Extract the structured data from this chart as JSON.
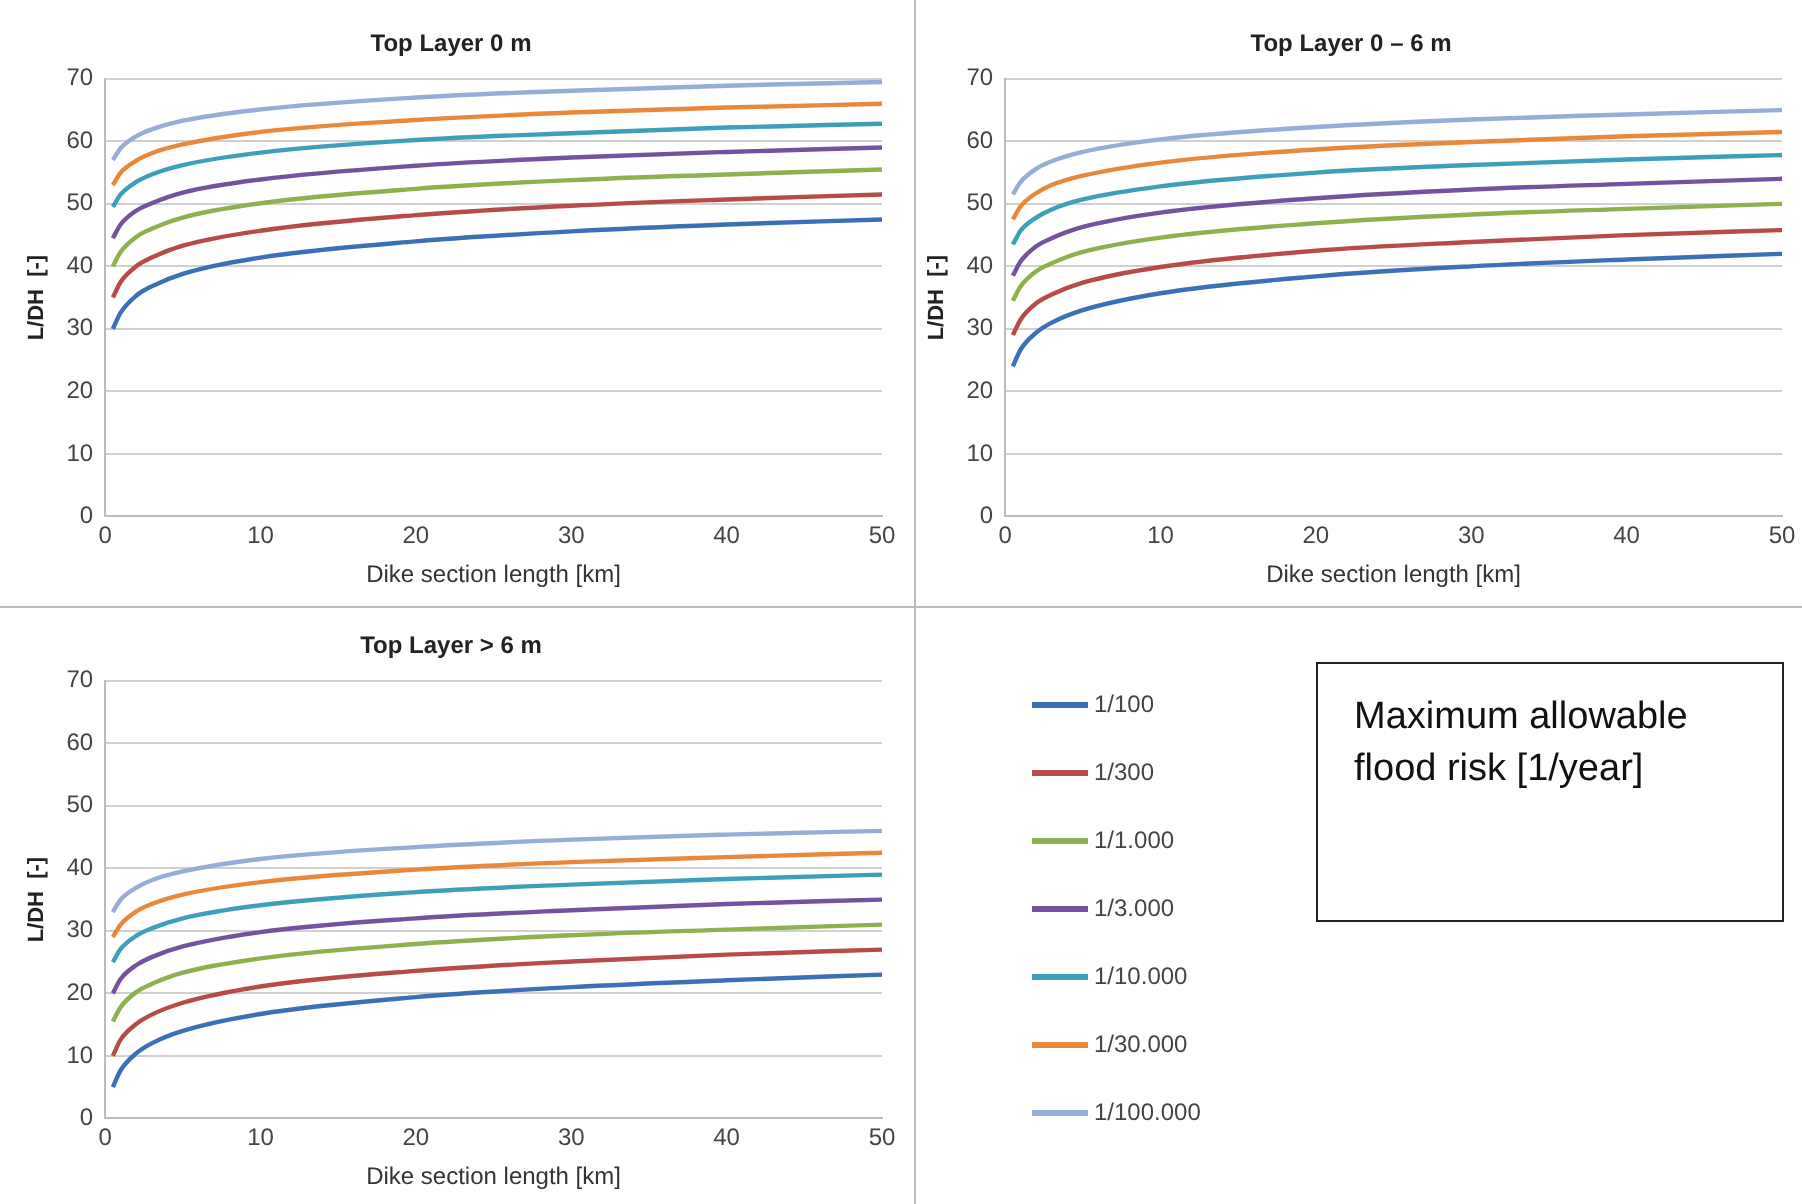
{
  "chart_data": [
    {
      "type": "line",
      "title": "Top Layer 0 m",
      "xlabel": "Dike section length [km]",
      "ylabel": "L/DH  [-]",
      "x": [
        0.5,
        1,
        2,
        3,
        5,
        10,
        20,
        30,
        40,
        50
      ],
      "xlim": [
        0,
        50
      ],
      "xticks": [
        0,
        10,
        20,
        30,
        40,
        50
      ],
      "ylim": [
        0,
        70
      ],
      "yticks": [
        0,
        10,
        20,
        30,
        40,
        50,
        60,
        70
      ],
      "grid": "y",
      "marker": "none",
      "series": [
        {
          "color": "#3b6fb6",
          "values": [
            30,
            32.6,
            35.3,
            36.8,
            38.8,
            41.4,
            44.0,
            45.6,
            46.7,
            47.5
          ]
        },
        {
          "color": "#b84a47",
          "values": [
            35,
            37.5,
            40.0,
            41.4,
            43.3,
            45.7,
            48.2,
            49.7,
            50.7,
            51.5
          ]
        },
        {
          "color": "#8fb04e",
          "values": [
            40,
            42.3,
            44.7,
            46.0,
            47.8,
            50.1,
            52.4,
            53.8,
            54.7,
            55.5
          ]
        },
        {
          "color": "#7452a0",
          "values": [
            44.5,
            46.7,
            48.9,
            50.1,
            51.8,
            53.9,
            56.1,
            57.4,
            58.3,
            59
          ]
        },
        {
          "color": "#3ea0b8",
          "values": [
            49.5,
            51.5,
            53.5,
            54.7,
            56.2,
            58.2,
            60.2,
            61.3,
            62.2,
            62.8
          ]
        },
        {
          "color": "#e9883a",
          "values": [
            53,
            55.0,
            56.9,
            58.1,
            59.5,
            61.5,
            63.4,
            64.6,
            65.4,
            66
          ]
        },
        {
          "color": "#96add7",
          "values": [
            57,
            58.9,
            60.8,
            61.9,
            63.3,
            65.1,
            67.0,
            68.1,
            68.9,
            69.5
          ]
        }
      ]
    },
    {
      "type": "line",
      "title": "Top Layer 0 – 6 m",
      "xlabel": "Dike section length [km]",
      "ylabel": "L/DH  [-]",
      "x": [
        0.5,
        1,
        2,
        3,
        5,
        10,
        20,
        30,
        40,
        50
      ],
      "xlim": [
        0,
        50
      ],
      "xticks": [
        0,
        10,
        20,
        30,
        40,
        50
      ],
      "ylim": [
        0,
        70
      ],
      "yticks": [
        0,
        10,
        20,
        30,
        40,
        50,
        60,
        70
      ],
      "grid": "y",
      "marker": "none",
      "series": [
        {
          "color": "#3b6fb6",
          "values": [
            24,
            26.7,
            29.4,
            31.0,
            33.0,
            35.7,
            38.4,
            40.0,
            41.1,
            42
          ]
        },
        {
          "color": "#b84a47",
          "values": [
            29,
            31.5,
            34.1,
            35.5,
            37.4,
            39.9,
            42.5,
            43.9,
            45.0,
            45.8
          ]
        },
        {
          "color": "#8fb04e",
          "values": [
            34.5,
            36.8,
            39.2,
            40.5,
            42.3,
            44.6,
            46.9,
            48.3,
            49.2,
            50
          ]
        },
        {
          "color": "#7452a0",
          "values": [
            38.5,
            40.8,
            43.2,
            44.5,
            46.3,
            48.6,
            50.9,
            52.3,
            53.2,
            54
          ]
        },
        {
          "color": "#3ea0b8",
          "values": [
            43.5,
            45.7,
            47.8,
            49.1,
            50.7,
            52.8,
            55.0,
            56.2,
            57.1,
            57.8
          ]
        },
        {
          "color": "#e9883a",
          "values": [
            47.5,
            49.6,
            51.7,
            53.0,
            54.5,
            56.6,
            58.7,
            59.9,
            60.8,
            61.5
          ]
        },
        {
          "color": "#96add7",
          "values": [
            51.5,
            53.5,
            55.6,
            56.8,
            58.3,
            60.3,
            62.3,
            63.5,
            64.3,
            65
          ]
        }
      ]
    },
    {
      "type": "line",
      "title": "Top Layer > 6 m",
      "xlabel": "Dike section length [km]",
      "ylabel": "L/DH  [-]",
      "legend": "right",
      "legend_title": "Maximum allowable flood risk [1/year]",
      "x": [
        0.5,
        1,
        2,
        3,
        5,
        10,
        20,
        30,
        40,
        50
      ],
      "xlim": [
        0,
        50
      ],
      "xticks": [
        0,
        10,
        20,
        30,
        40,
        50
      ],
      "ylim": [
        0,
        70
      ],
      "yticks": [
        0,
        10,
        20,
        30,
        40,
        50,
        60,
        70
      ],
      "grid": "y",
      "marker": "none",
      "series": [
        {
          "name": "1/100",
          "color": "#3b6fb6",
          "values": [
            5,
            7.7,
            10.4,
            12.0,
            14.0,
            16.7,
            19.4,
            21.0,
            22.1,
            23
          ]
        },
        {
          "name": "1/300",
          "color": "#b84a47",
          "values": [
            10,
            12.6,
            15.1,
            16.6,
            18.5,
            21.1,
            23.6,
            25.1,
            26.2,
            27
          ]
        },
        {
          "name": "1/1.000",
          "color": "#8fb04e",
          "values": [
            15.5,
            17.8,
            20.2,
            21.5,
            23.3,
            25.6,
            27.9,
            29.3,
            30.2,
            31
          ]
        },
        {
          "name": "1/3.000",
          "color": "#7452a0",
          "values": [
            20,
            22.3,
            24.5,
            25.8,
            27.5,
            29.8,
            32.0,
            33.3,
            34.3,
            35
          ]
        },
        {
          "name": "1/10.000",
          "color": "#3ea0b8",
          "values": [
            25,
            27.1,
            29.2,
            30.4,
            32.0,
            34.1,
            36.2,
            37.4,
            38.3,
            39
          ]
        },
        {
          "name": "1/30.000",
          "color": "#e9883a",
          "values": [
            29,
            31.0,
            33.1,
            34.3,
            35.8,
            37.8,
            39.8,
            41.0,
            41.8,
            42.5
          ]
        },
        {
          "name": "1/100.000",
          "color": "#96add7",
          "values": [
            33,
            35.0,
            36.9,
            38.1,
            39.5,
            41.5,
            43.4,
            44.6,
            45.4,
            46
          ]
        }
      ]
    }
  ]
}
